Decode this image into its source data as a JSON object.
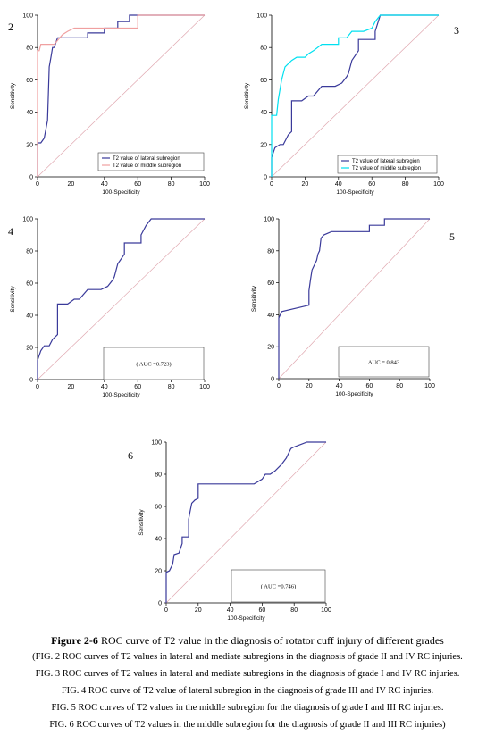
{
  "colors": {
    "navy": "#3a3a9a",
    "pink": "#f0a0a0",
    "cyan": "#00e0f0",
    "diag": "#e0a8b0",
    "axis": "#000000"
  },
  "chart_data": [
    {
      "type": "line",
      "panel_label": "2",
      "xlabel": "100-Specificity",
      "ylabel": "Sensitivity",
      "xlim": [
        0,
        100
      ],
      "ylim": [
        0,
        100
      ],
      "ticks": [
        "0",
        "20",
        "40",
        "60",
        "80",
        "100"
      ],
      "legend_position": "bottom-right",
      "series": [
        {
          "name": "T2 value of lateral subregion",
          "color": "navy",
          "x": [
            0,
            0,
            2,
            4,
            6,
            7,
            8,
            9,
            10,
            12,
            30,
            30,
            40,
            40,
            48,
            48,
            55,
            55,
            100
          ],
          "y": [
            0,
            21,
            21,
            24,
            35,
            68,
            74,
            80,
            80,
            86,
            86,
            89,
            89,
            92,
            92,
            96,
            96,
            100,
            100
          ]
        },
        {
          "name": "T2 value of middle subregion",
          "color": "pink",
          "x": [
            0,
            0,
            1,
            2,
            5,
            10,
            15,
            18,
            22,
            60,
            60,
            100
          ],
          "y": [
            0,
            78,
            78,
            82,
            82,
            82,
            88,
            90,
            92,
            92,
            100,
            100
          ]
        }
      ]
    },
    {
      "type": "line",
      "panel_label": "3",
      "xlabel": "100-Specificity",
      "ylabel": "Sensitivity",
      "xlim": [
        0,
        100
      ],
      "ylim": [
        0,
        100
      ],
      "ticks": [
        "0",
        "20",
        "40",
        "60",
        "80",
        "100"
      ],
      "legend_position": "bottom-right",
      "series": [
        {
          "name": "T2 value of lateral subregion",
          "color": "navy",
          "x": [
            0,
            0,
            2,
            5,
            7,
            9,
            10,
            12,
            12,
            18,
            22,
            25,
            30,
            38,
            42,
            45,
            46,
            48,
            52,
            52,
            62,
            62,
            65,
            100
          ],
          "y": [
            0,
            12,
            18,
            20,
            20,
            24,
            26,
            28,
            47,
            47,
            50,
            50,
            56,
            56,
            58,
            62,
            64,
            72,
            78,
            85,
            85,
            90,
            100,
            100
          ]
        },
        {
          "name": "T2 value of middle subregion",
          "color": "cyan",
          "x": [
            0,
            0,
            3,
            4,
            6,
            8,
            12,
            15,
            20,
            22,
            25,
            30,
            35,
            40,
            40,
            45,
            48,
            52,
            55,
            60,
            62,
            65,
            100
          ],
          "y": [
            0,
            38,
            38,
            48,
            60,
            68,
            72,
            74,
            74,
            76,
            78,
            82,
            82,
            82,
            86,
            86,
            90,
            90,
            90,
            92,
            96,
            100,
            100
          ]
        }
      ]
    },
    {
      "type": "line",
      "panel_label": "4",
      "xlabel": "100-Specificity",
      "ylabel": "Sensitivity",
      "xlim": [
        0,
        100
      ],
      "ylim": [
        0,
        100
      ],
      "ticks": [
        "0",
        "20",
        "40",
        "60",
        "80",
        "100"
      ],
      "annotation": "( AUC =0.723)",
      "series": [
        {
          "name": "",
          "color": "navy",
          "x": [
            0,
            0,
            2,
            4,
            7,
            9,
            10,
            12,
            12,
            18,
            22,
            25,
            30,
            38,
            42,
            45,
            46,
            48,
            52,
            52,
            62,
            62,
            65,
            68,
            100
          ],
          "y": [
            0,
            12,
            18,
            21,
            21,
            25,
            26,
            28,
            47,
            47,
            50,
            50,
            56,
            56,
            58,
            62,
            64,
            72,
            78,
            85,
            85,
            90,
            96,
            100,
            100
          ]
        }
      ]
    },
    {
      "type": "line",
      "panel_label": "5",
      "xlabel": "100-Specificity",
      "ylabel": "Sensitivity",
      "xlim": [
        0,
        100
      ],
      "ylim": [
        0,
        100
      ],
      "ticks": [
        "0",
        "20",
        "40",
        "60",
        "80",
        "100"
      ],
      "annotation": "AUC = 0.843",
      "series": [
        {
          "name": "",
          "color": "navy",
          "x": [
            0,
            0,
            2,
            20,
            20,
            21,
            22,
            25,
            26,
            27,
            28,
            30,
            35,
            60,
            60,
            70,
            70,
            100
          ],
          "y": [
            0,
            38,
            42,
            46,
            55,
            62,
            68,
            74,
            78,
            80,
            88,
            90,
            92,
            92,
            96,
            96,
            100,
            100
          ]
        }
      ]
    },
    {
      "type": "line",
      "panel_label": "6",
      "xlabel": "100-Specificity",
      "ylabel": "Sensitivity",
      "xlim": [
        0,
        100
      ],
      "ylim": [
        0,
        100
      ],
      "ticks": [
        "0",
        "20",
        "40",
        "60",
        "80",
        "100"
      ],
      "annotation": "( AUC =0.746)",
      "series": [
        {
          "name": "",
          "color": "navy",
          "x": [
            0,
            0,
            2,
            4,
            5,
            8,
            10,
            10,
            14,
            14,
            15,
            16,
            18,
            20,
            20,
            55,
            60,
            62,
            65,
            68,
            72,
            75,
            78,
            80,
            88,
            90,
            100
          ],
          "y": [
            0,
            19,
            20,
            24,
            30,
            31,
            37,
            41,
            41,
            52,
            57,
            62,
            64,
            65,
            74,
            74,
            77,
            80,
            80,
            82,
            86,
            90,
            96,
            97,
            100,
            100,
            100
          ]
        }
      ]
    }
  ],
  "captions": {
    "title_bold": "Figure 2-6",
    "title_rest": " ROC curve of T2 value in the diagnosis of rotator cuff injury of different grades",
    "lines": [
      "(FIG. 2 ROC curves of T2 values in lateral and mediate subregions in the diagnosis of grade II and IV RC injuries.",
      "FIG. 3 ROC curves of T2 values in lateral and mediate subregions in the diagnosis of grade I and IV RC injuries.",
      "FIG. 4 ROC curve of T2 value of lateral subregion in the diagnosis of grade III and IV RC injuries.",
      "FIG. 5 ROC curves of T2 values in the middle subregion for the diagnosis of grade I and III RC injuries.",
      "FIG. 6 ROC curves of T2 values in the middle subregion for the diagnosis of grade II and III RC injuries)"
    ]
  }
}
